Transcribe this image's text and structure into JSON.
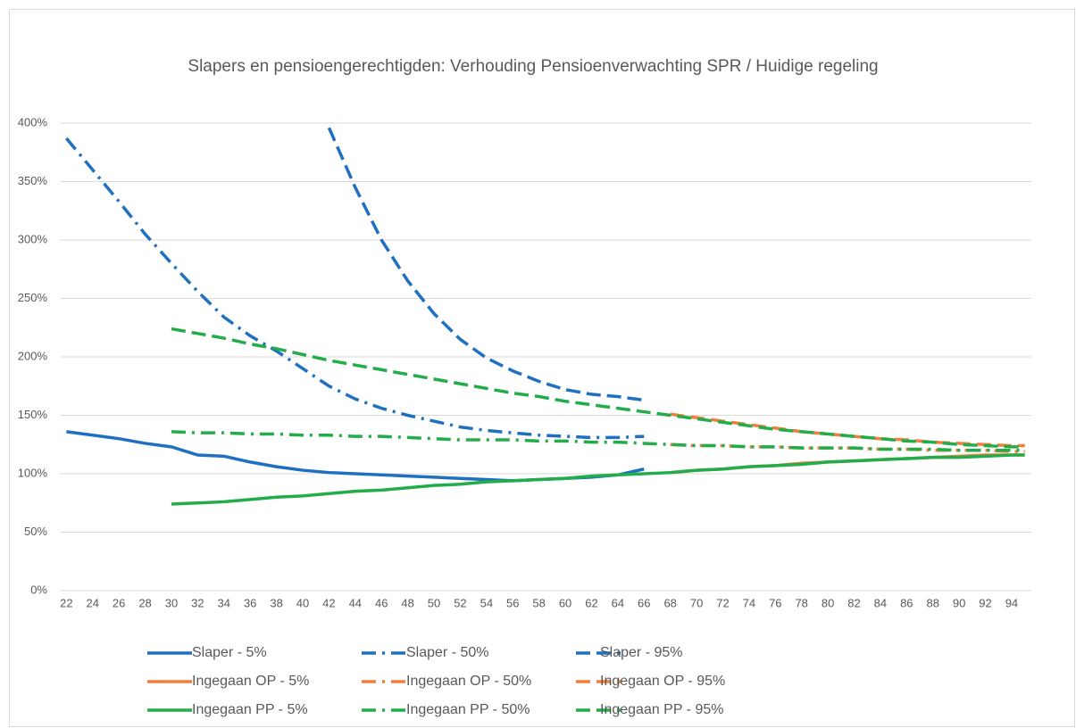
{
  "chart_data": {
    "type": "line",
    "title": "Slapers en pensioengerechtigden: Verhouding Pensioenverwachting SPR / Huidige regeling",
    "x": [
      22,
      24,
      26,
      28,
      30,
      32,
      34,
      36,
      38,
      40,
      42,
      44,
      46,
      48,
      50,
      52,
      54,
      56,
      58,
      60,
      62,
      64,
      66,
      68,
      70,
      72,
      74,
      76,
      78,
      80,
      82,
      84,
      86,
      88,
      90,
      92,
      94,
      95
    ],
    "xlim": [
      21.5,
      95.5
    ],
    "xticks": [
      22,
      24,
      26,
      28,
      30,
      32,
      34,
      36,
      38,
      40,
      42,
      44,
      46,
      48,
      50,
      52,
      54,
      56,
      58,
      60,
      62,
      64,
      66,
      68,
      70,
      72,
      74,
      76,
      78,
      80,
      82,
      84,
      86,
      88,
      90,
      92,
      94
    ],
    "ylim": [
      0,
      400
    ],
    "yticks": [
      {
        "value": 0,
        "label": "0%"
      },
      {
        "value": 50,
        "label": "50%"
      },
      {
        "value": 100,
        "label": "100%"
      },
      {
        "value": 150,
        "label": "150%"
      },
      {
        "value": 200,
        "label": "200%"
      },
      {
        "value": 250,
        "label": "250%"
      },
      {
        "value": 300,
        "label": "300%"
      },
      {
        "value": 350,
        "label": "350%"
      },
      {
        "value": 400,
        "label": "400%"
      }
    ],
    "grid": true,
    "legend": "bottom",
    "series": [
      {
        "name": "Slaper - 5%",
        "color": "#1f70c1",
        "dash": "solid",
        "values": [
          136,
          133,
          130,
          126,
          123,
          116,
          115,
          110,
          106,
          103,
          101,
          100,
          99,
          98,
          97,
          96,
          95,
          94,
          95,
          96,
          97,
          99,
          104,
          null,
          null,
          null,
          null,
          null,
          null,
          null,
          null,
          null,
          null,
          null,
          null,
          null,
          null,
          null
        ]
      },
      {
        "name": "Slaper - 50%",
        "color": "#1f70c1",
        "dash": "dash-dot",
        "values": [
          387,
          360,
          333,
          305,
          280,
          256,
          234,
          218,
          205,
          190,
          175,
          164,
          156,
          150,
          145,
          140,
          137,
          135,
          133,
          132,
          131,
          131,
          132,
          null,
          null,
          null,
          null,
          null,
          null,
          null,
          null,
          null,
          null,
          null,
          null,
          null,
          null,
          null
        ]
      },
      {
        "name": "Slaper - 95%",
        "color": "#1f70c1",
        "dash": "dash",
        "values": [
          null,
          null,
          null,
          null,
          null,
          null,
          null,
          null,
          null,
          null,
          396,
          345,
          300,
          265,
          237,
          215,
          199,
          188,
          179,
          172,
          168,
          166,
          163,
          null,
          null,
          null,
          null,
          null,
          null,
          null,
          null,
          null,
          null,
          null,
          null,
          null,
          null,
          null
        ]
      },
      {
        "name": "Ingegaan OP - 5%",
        "color": "#f07f3c",
        "dash": "solid",
        "values": [
          null,
          null,
          null,
          null,
          null,
          null,
          null,
          null,
          null,
          null,
          null,
          null,
          null,
          null,
          null,
          null,
          null,
          null,
          null,
          null,
          null,
          null,
          null,
          101,
          103,
          104,
          106,
          107,
          109,
          110,
          111,
          112,
          113,
          114,
          115,
          116,
          116,
          116
        ]
      },
      {
        "name": "Ingegaan OP - 50%",
        "color": "#f07f3c",
        "dash": "dash-dot",
        "values": [
          null,
          null,
          null,
          null,
          null,
          null,
          null,
          null,
          null,
          null,
          null,
          null,
          null,
          null,
          null,
          null,
          null,
          null,
          null,
          null,
          null,
          null,
          null,
          125,
          124,
          124,
          123,
          123,
          122,
          122,
          122,
          121,
          121,
          120,
          120,
          120,
          119,
          119
        ]
      },
      {
        "name": "Ingegaan OP - 95%",
        "color": "#f07f3c",
        "dash": "dash",
        "values": [
          null,
          null,
          null,
          null,
          null,
          null,
          null,
          null,
          null,
          null,
          null,
          null,
          null,
          null,
          null,
          null,
          null,
          null,
          null,
          null,
          null,
          null,
          null,
          151,
          148,
          145,
          142,
          139,
          136,
          134,
          132,
          130,
          129,
          127,
          126,
          125,
          124,
          124
        ]
      },
      {
        "name": "Ingegaan PP - 5%",
        "color": "#22ad4a",
        "dash": "solid",
        "values": [
          null,
          null,
          null,
          null,
          74,
          75,
          76,
          78,
          80,
          81,
          83,
          85,
          86,
          88,
          90,
          91,
          93,
          94,
          95,
          96,
          98,
          99,
          100,
          101,
          103,
          104,
          106,
          107,
          108,
          110,
          111,
          112,
          113,
          114,
          114,
          115,
          116,
          116
        ]
      },
      {
        "name": "Ingegaan PP - 50%",
        "color": "#22ad4a",
        "dash": "dash-dot",
        "values": [
          null,
          null,
          null,
          null,
          136,
          135,
          135,
          134,
          134,
          133,
          133,
          132,
          132,
          131,
          130,
          129,
          129,
          129,
          128,
          128,
          127,
          127,
          126,
          125,
          124,
          124,
          123,
          123,
          122,
          122,
          122,
          121,
          121,
          121,
          120,
          120,
          120,
          120
        ]
      },
      {
        "name": "Ingegaan PP - 95%",
        "color": "#22ad4a",
        "dash": "dash",
        "values": [
          null,
          null,
          null,
          null,
          224,
          220,
          216,
          211,
          207,
          202,
          197,
          193,
          189,
          185,
          181,
          177,
          173,
          169,
          166,
          162,
          159,
          156,
          153,
          150,
          147,
          144,
          141,
          138,
          136,
          134,
          132,
          130,
          128,
          127,
          125,
          124,
          123,
          123
        ]
      }
    ]
  }
}
